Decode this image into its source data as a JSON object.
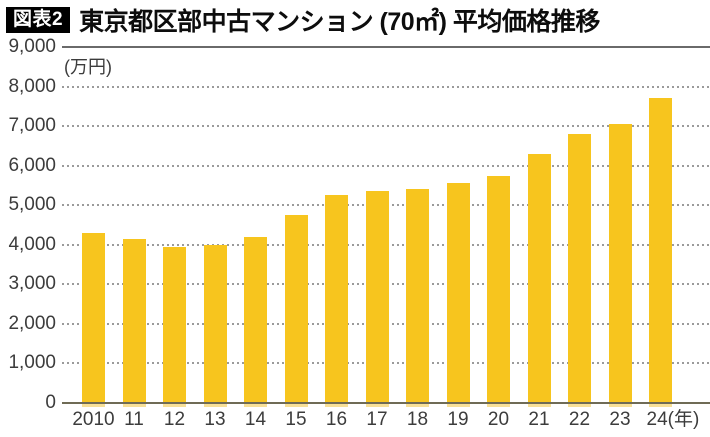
{
  "title": {
    "badge": "図表2",
    "text": "東京都区部中古マンション (70㎡) 平均価格推移"
  },
  "chart_data": {
    "type": "bar",
    "title": "東京都区部中古マンション (70㎡) 平均価格推移",
    "unit_label": "(万円)",
    "categories": [
      "2010",
      "11",
      "12",
      "13",
      "14",
      "15",
      "16",
      "17",
      "18",
      "19",
      "20",
      "21",
      "22",
      "23",
      "24"
    ],
    "x_suffix": "(年)",
    "values": [
      4300,
      4150,
      3950,
      4000,
      4200,
      4750,
      5250,
      5350,
      5400,
      5550,
      5750,
      6300,
      6800,
      7050,
      7700
    ],
    "ylabel": "万円",
    "ylim": [
      0,
      9000
    ],
    "ytick_step": 1000,
    "yticks": [
      "0",
      "1,000",
      "2,000",
      "3,000",
      "4,000",
      "5,000",
      "6,000",
      "7,000",
      "8,000",
      "9,000"
    ],
    "grid": "horizontal dotted, top line solid",
    "legend": "none",
    "bar_color": "#F7C51E",
    "bar_under_axis_color": "#F8E097",
    "gridline_color": "#9B9B9B",
    "top_line_color": "#6A6A6A",
    "axis_line_color": "#6F6B55",
    "label_color": "#3C3C3C"
  }
}
